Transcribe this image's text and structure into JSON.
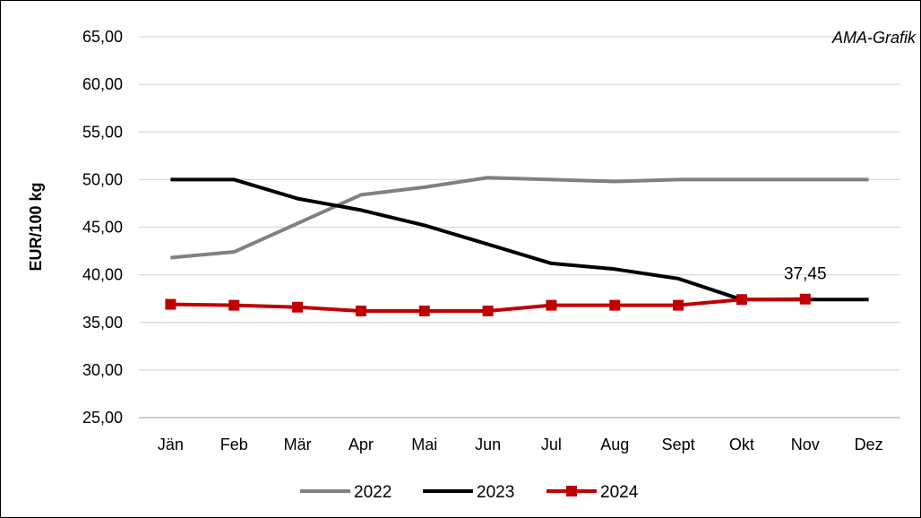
{
  "credit": "AMA-Grafik",
  "chart_data": {
    "type": "line",
    "title": "",
    "xlabel": "",
    "ylabel": "EUR/100 kg",
    "ylim": [
      25,
      65
    ],
    "ystep": 5,
    "ytick_format": "comma-2",
    "grid": "horizontal",
    "legend_position": "bottom",
    "categories": [
      "Jän",
      "Feb",
      "Mär",
      "Apr",
      "Mai",
      "Jun",
      "Jul",
      "Aug",
      "Sept",
      "Okt",
      "Nov",
      "Dez"
    ],
    "series": [
      {
        "name": "2022",
        "color": "#808080",
        "marker": "none",
        "values": [
          41.8,
          42.4,
          45.4,
          48.4,
          49.2,
          50.2,
          50.0,
          49.8,
          50.0,
          50.0,
          50.0,
          50.0
        ]
      },
      {
        "name": "2023",
        "color": "#000000",
        "marker": "none",
        "values": [
          50.0,
          50.0,
          48.0,
          46.8,
          45.2,
          43.2,
          41.2,
          40.6,
          39.6,
          37.4,
          37.4,
          37.4
        ]
      },
      {
        "name": "2024",
        "color": "#C00000",
        "marker": "square",
        "values": [
          36.9,
          36.8,
          36.6,
          36.2,
          36.2,
          36.2,
          36.8,
          36.8,
          36.8,
          37.4,
          37.45,
          null
        ]
      }
    ],
    "annotations": [
      {
        "text": "37,45",
        "series": "2024",
        "category": "Nov"
      }
    ]
  }
}
